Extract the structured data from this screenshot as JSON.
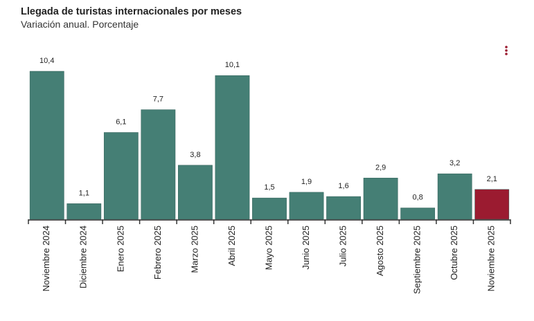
{
  "chart_data": {
    "type": "bar",
    "title": "Llegada de turistas internacionales por meses",
    "subtitle": "Variación anual. Porcentaje",
    "categories": [
      "Noviembre 2024",
      "Diciembre 2024",
      "Enero 2025",
      "Febrero 2025",
      "Marzo 2025",
      "Abril 2025",
      "Mayo 2025",
      "Junio 2025",
      "Julio 2025",
      "Agosto 2025",
      "Septiembre 2025",
      "Octubre 2025",
      "Noviembre 2025"
    ],
    "values": [
      10.4,
      1.1,
      6.1,
      7.7,
      3.8,
      10.1,
      1.5,
      1.9,
      1.6,
      2.9,
      0.8,
      3.2,
      2.1
    ],
    "value_labels": [
      "10,4",
      "1,1",
      "6,1",
      "7,7",
      "3,8",
      "10,1",
      "1,5",
      "1,9",
      "1,6",
      "2,9",
      "0,8",
      "3,2",
      "2,1"
    ],
    "colors": [
      "#457f75",
      "#457f75",
      "#457f75",
      "#457f75",
      "#457f75",
      "#457f75",
      "#457f75",
      "#457f75",
      "#457f75",
      "#457f75",
      "#457f75",
      "#457f75",
      "#9b1b30"
    ]
  }
}
